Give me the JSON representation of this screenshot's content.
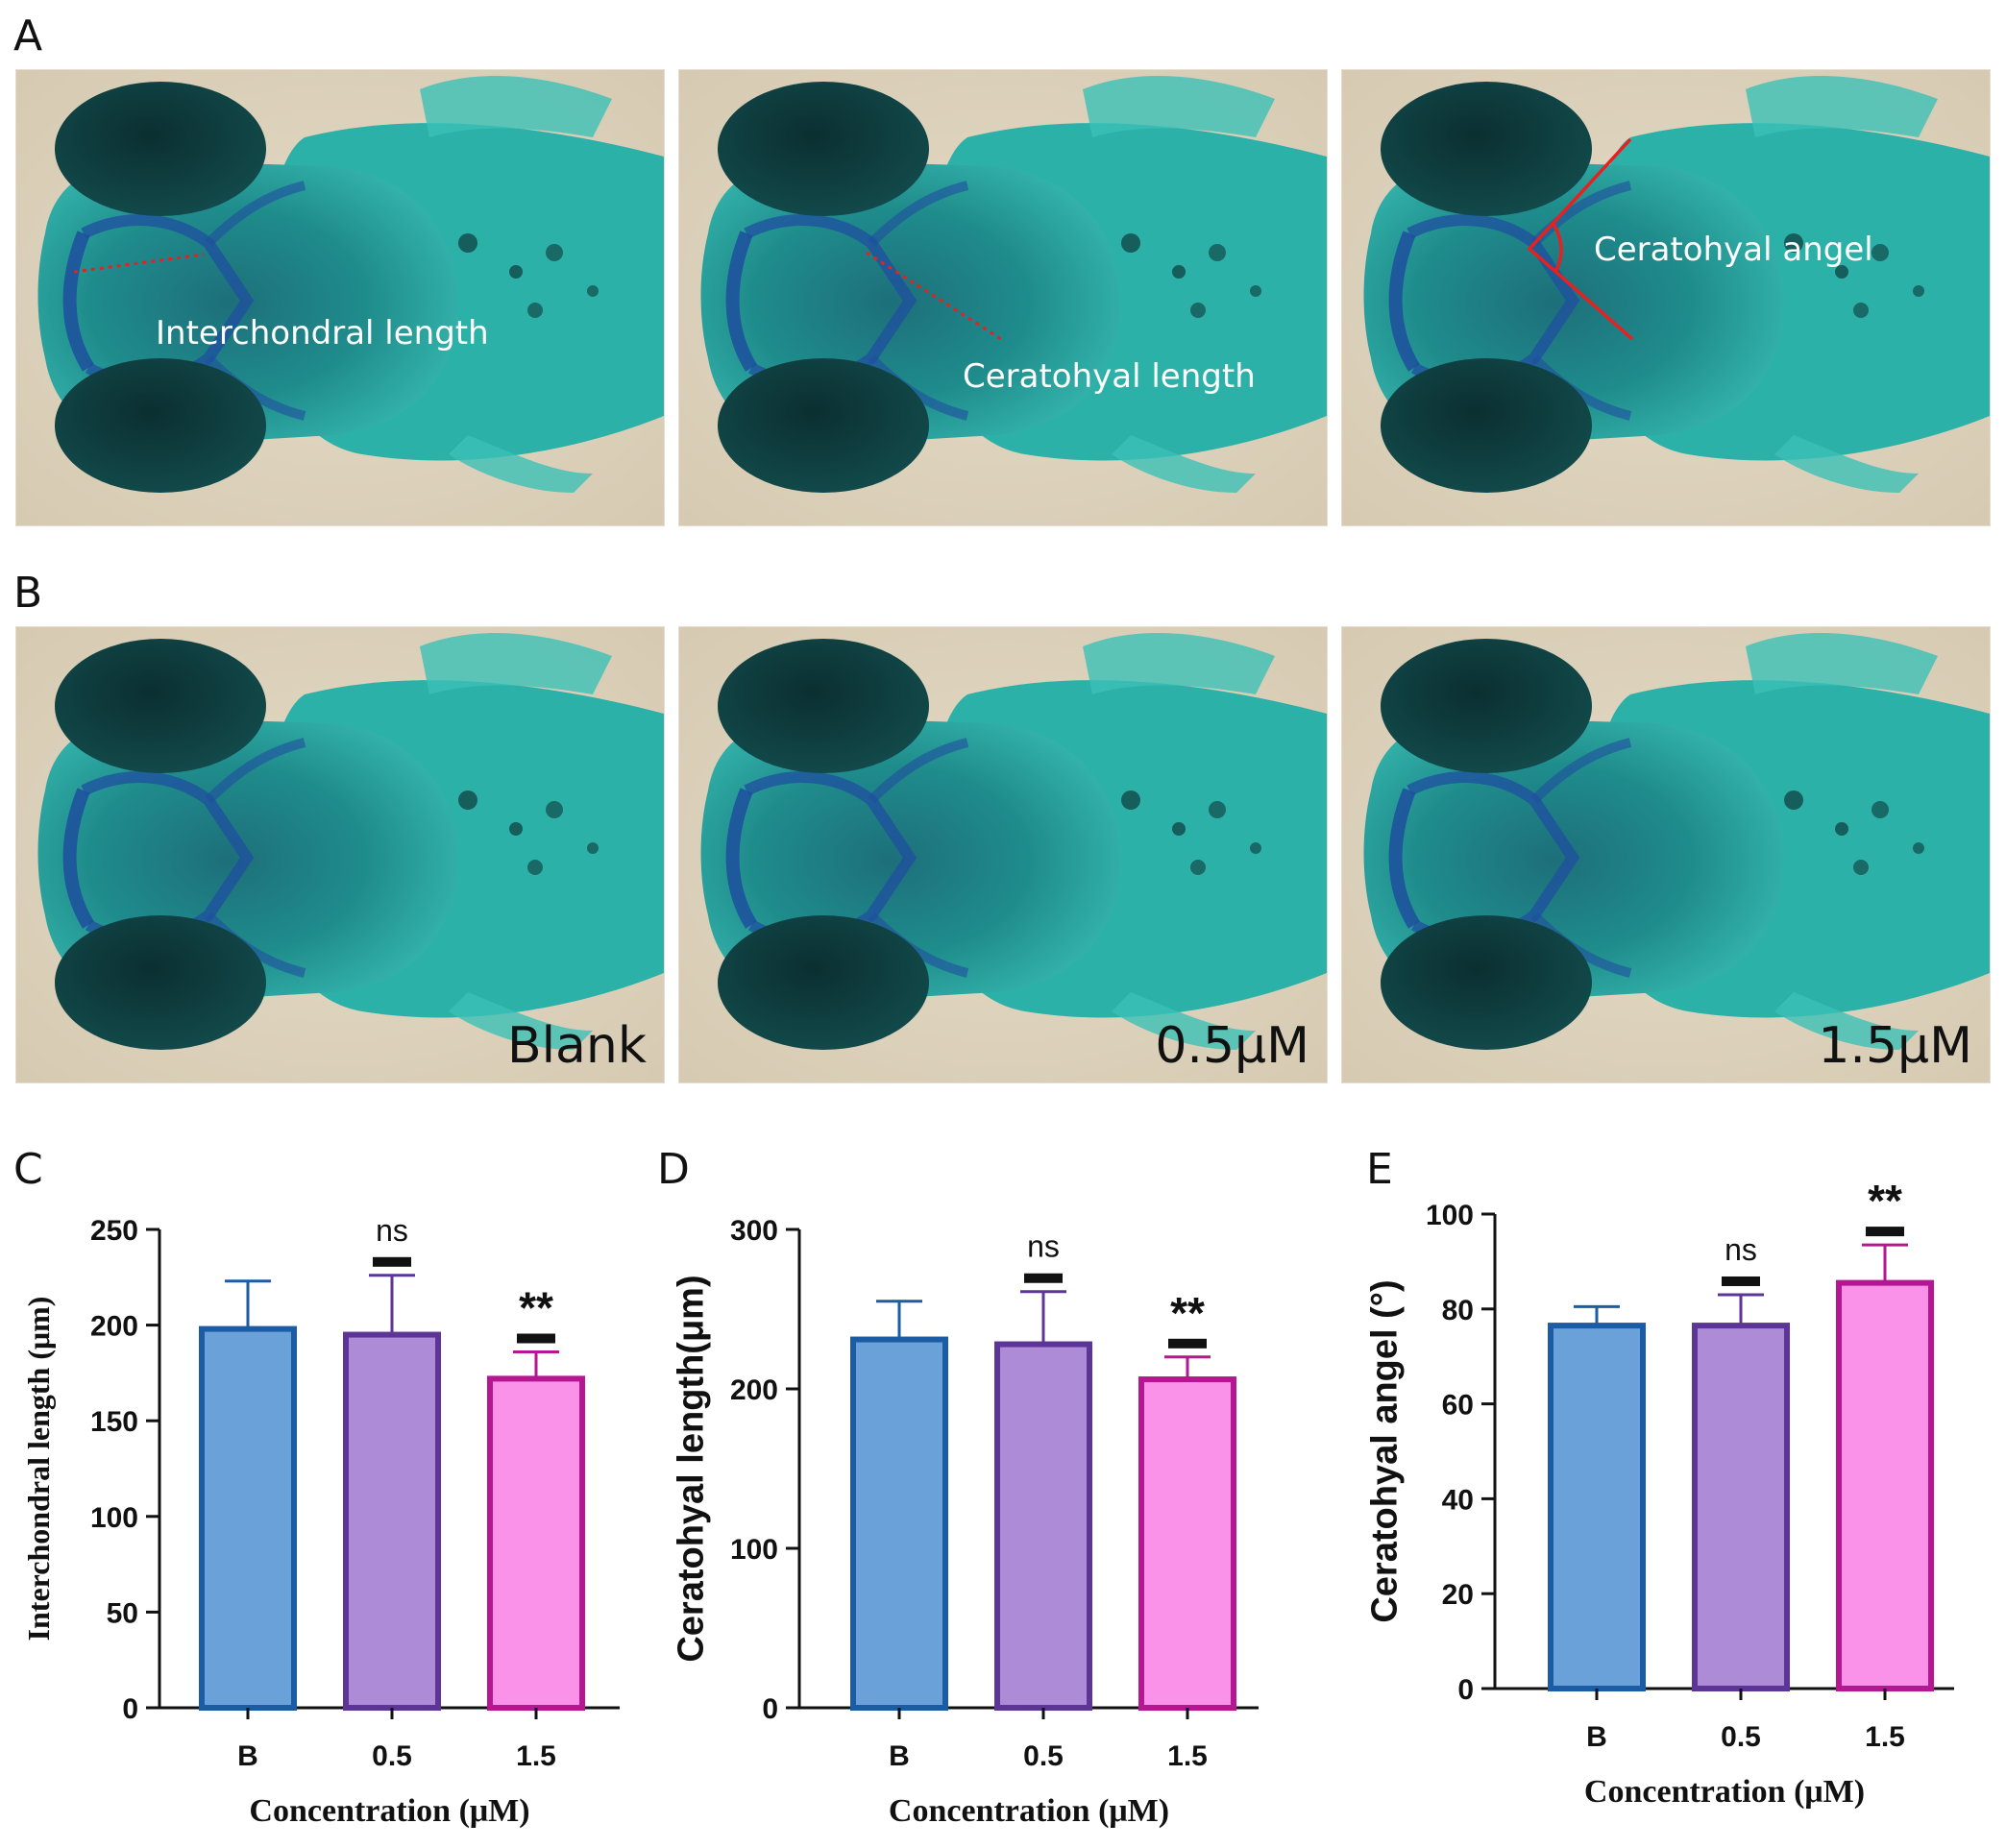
{
  "panels": {
    "A": "A",
    "B": "B",
    "C": "C",
    "D": "D",
    "E": "E"
  },
  "annotations": {
    "interchondral": "Interchondral length",
    "ceratohyal_length": "Ceratohyal length",
    "ceratohyal_angle": "Ceratohyal angel"
  },
  "photo_labels": [
    "Blank",
    "0.5μM",
    "1.5μM"
  ],
  "colors": {
    "background": "#ded3bd",
    "tissue": "#2aa39a",
    "eye": "#0d3b3a",
    "cartilage": "#1d4f9e",
    "measure_line": "#e8201f"
  },
  "chart_data": [
    {
      "type": "bar",
      "panel": "C",
      "title": "",
      "categories": [
        "B",
        "0.5",
        "1.5"
      ],
      "values": [
        198,
        195,
        172
      ],
      "errors": [
        25,
        31,
        14
      ],
      "significance": [
        "",
        "ns",
        "**"
      ],
      "xlabel": "Concentration (μM)",
      "ylabel": "Interchondral length (μm)",
      "ylim": [
        0,
        250
      ],
      "yticks": [
        0,
        50,
        100,
        150,
        200,
        250
      ],
      "fill_colors": [
        "#6aa1d8",
        "#ad8bd6",
        "#fb92ea"
      ],
      "edge_colors": [
        "#1b5ca4",
        "#5c3597",
        "#b4178f"
      ]
    },
    {
      "type": "bar",
      "panel": "D",
      "title": "",
      "categories": [
        "B",
        "0.5",
        "1.5"
      ],
      "values": [
        231,
        228,
        206
      ],
      "errors": [
        24,
        33,
        14
      ],
      "significance": [
        "",
        "ns",
        "**"
      ],
      "xlabel": "Concentration (μM)",
      "ylabel": "Ceratohyal length(μm)",
      "ylim": [
        0,
        300
      ],
      "yticks": [
        0,
        100,
        200,
        300
      ],
      "fill_colors": [
        "#6aa1d8",
        "#ad8bd6",
        "#fb92ea"
      ],
      "edge_colors": [
        "#1b5ca4",
        "#5c3597",
        "#b4178f"
      ]
    },
    {
      "type": "bar",
      "panel": "E",
      "title": "",
      "categories": [
        "B",
        "0.5",
        "1.5"
      ],
      "values": [
        76.5,
        76.5,
        85.5
      ],
      "errors": [
        4,
        6.5,
        8
      ],
      "significance": [
        "",
        "ns",
        "**"
      ],
      "xlabel": "Concentration (μM)",
      "ylabel": "Ceratohyal angel (°)",
      "ylim": [
        0,
        100
      ],
      "yticks": [
        0,
        20,
        40,
        60,
        80,
        100
      ],
      "fill_colors": [
        "#6aa1d8",
        "#ad8bd6",
        "#fb92ea"
      ],
      "edge_colors": [
        "#1b5ca4",
        "#5c3597",
        "#b4178f"
      ]
    }
  ]
}
